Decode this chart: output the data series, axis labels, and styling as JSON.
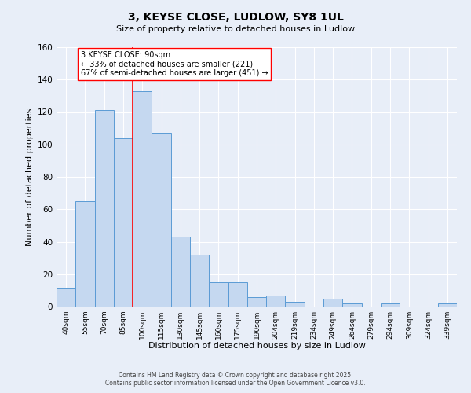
{
  "title": "3, KEYSE CLOSE, LUDLOW, SY8 1UL",
  "subtitle": "Size of property relative to detached houses in Ludlow",
  "xlabel": "Distribution of detached houses by size in Ludlow",
  "ylabel": "Number of detached properties",
  "categories": [
    "40sqm",
    "55sqm",
    "70sqm",
    "85sqm",
    "100sqm",
    "115sqm",
    "130sqm",
    "145sqm",
    "160sqm",
    "175sqm",
    "190sqm",
    "204sqm",
    "219sqm",
    "234sqm",
    "249sqm",
    "264sqm",
    "279sqm",
    "294sqm",
    "309sqm",
    "324sqm",
    "339sqm"
  ],
  "values": [
    11,
    65,
    121,
    104,
    133,
    107,
    43,
    32,
    15,
    15,
    6,
    7,
    3,
    0,
    5,
    2,
    0,
    2,
    0,
    0,
    2
  ],
  "bar_color": "#c5d8f0",
  "bar_edge_color": "#5b9bd5",
  "annotation_line1": "3 KEYSE CLOSE: 90sqm",
  "annotation_line2": "← 33% of detached houses are smaller (221)",
  "annotation_line3": "67% of semi-detached houses are larger (451) →",
  "red_line_x": 3.5,
  "background_color": "#e8eef8",
  "grid_color": "#ffffff",
  "ylim": [
    0,
    160
  ],
  "yticks": [
    0,
    20,
    40,
    60,
    80,
    100,
    120,
    140,
    160
  ],
  "footer_line1": "Contains HM Land Registry data © Crown copyright and database right 2025.",
  "footer_line2": "Contains public sector information licensed under the Open Government Licence v3.0."
}
